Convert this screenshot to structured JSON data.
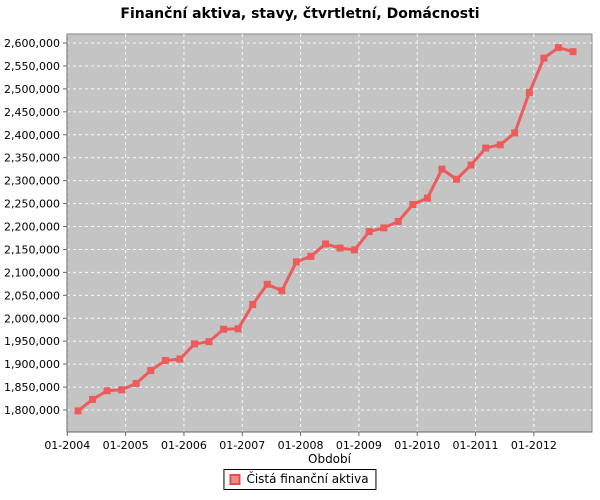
{
  "chart_data": {
    "type": "line",
    "title": "Finanční aktiva, stavy, čtvrtletní, Domácnosti",
    "xlabel": "Období",
    "ylabel": "",
    "x_tick_labels": [
      "01-2004",
      "01-2005",
      "01-2006",
      "01-2007",
      "01-2008",
      "01-2009",
      "01-2010",
      "01-2011",
      "01-2012"
    ],
    "y_tick_values": [
      1800000,
      1850000,
      1900000,
      1950000,
      2000000,
      2050000,
      2100000,
      2150000,
      2200000,
      2250000,
      2300000,
      2350000,
      2400000,
      2450000,
      2500000,
      2550000,
      2600000
    ],
    "ylim": [
      1775000,
      2625000
    ],
    "grid": true,
    "legend_position": "bottom",
    "categories": [
      "01-2004",
      "04-2004",
      "07-2004",
      "10-2004",
      "01-2005",
      "04-2005",
      "07-2005",
      "10-2005",
      "01-2006",
      "04-2006",
      "07-2006",
      "10-2006",
      "01-2007",
      "04-2007",
      "07-2007",
      "10-2007",
      "01-2008",
      "04-2008",
      "07-2008",
      "10-2008",
      "01-2009",
      "04-2009",
      "07-2009",
      "10-2009",
      "01-2010",
      "04-2010",
      "07-2010",
      "10-2010",
      "01-2011",
      "04-2011",
      "07-2011",
      "10-2011",
      "01-2012",
      "04-2012",
      "07-2012"
    ],
    "series": [
      {
        "name": "Čistá finanční aktiva",
        "values": [
          1798000,
          1823000,
          1842000,
          1844000,
          1858000,
          1886000,
          1908000,
          1911000,
          1944000,
          1949000,
          1976000,
          1977000,
          2030000,
          2074000,
          2060000,
          2123000,
          2135000,
          2162000,
          2153000,
          2149000,
          2189000,
          2197000,
          2211000,
          2248000,
          2262000,
          2325000,
          2303000,
          2334000,
          2371000,
          2378000,
          2404000,
          2492000,
          2567000,
          2590000,
          2581000
        ]
      }
    ]
  },
  "legend": {
    "label": "Čistá finanční aktiva"
  },
  "colors": {
    "series_line": "#ED5B5B",
    "legend_swatch_fill": "#F58A8A",
    "legend_swatch_border": "#E4504E",
    "plot_background": "#C4C4C4",
    "gridline": "#FFFFFF",
    "axis_line": "#888888",
    "tick": "#666666",
    "text": "#000000"
  }
}
